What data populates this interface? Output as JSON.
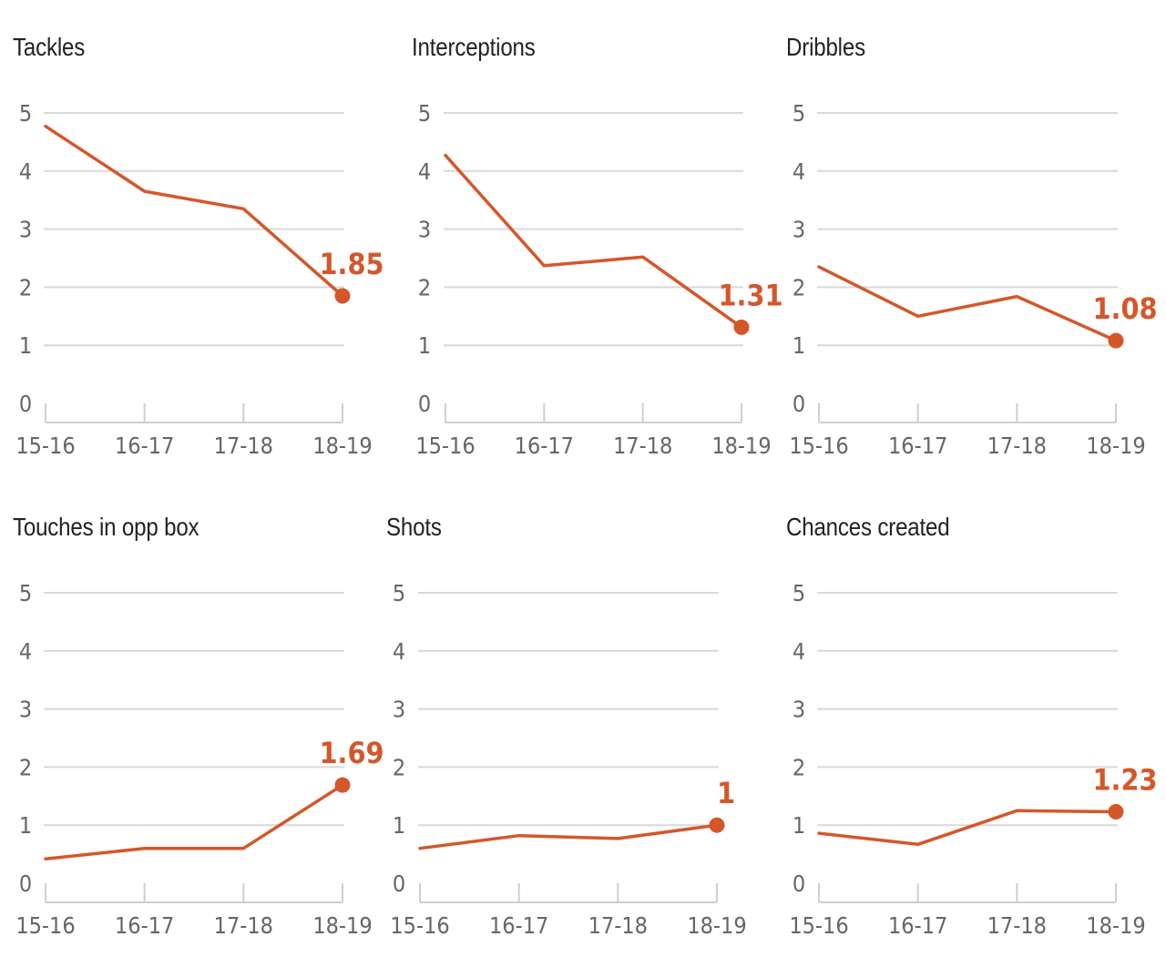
{
  "style": {
    "line_color": "#d4572a",
    "grid_color": "#d9d9d9",
    "axis_color": "#cfcfcf",
    "tick_label_color": "#666666",
    "title_color": "#222222"
  },
  "chart_data": [
    {
      "type": "line",
      "title": "Tackles",
      "categories": [
        "15-16",
        "16-17",
        "17-18",
        "18-19"
      ],
      "values": [
        4.77,
        3.65,
        3.35,
        1.85
      ],
      "ylim": [
        0,
        5
      ],
      "yticks": [
        "0",
        "1",
        "2",
        "3",
        "4",
        "5"
      ],
      "end_label": "1.85",
      "grid": true
    },
    {
      "type": "line",
      "title": "Interceptions",
      "categories": [
        "15-16",
        "16-17",
        "17-18",
        "18-19"
      ],
      "values": [
        4.27,
        2.37,
        2.52,
        1.31
      ],
      "ylim": [
        0,
        5
      ],
      "yticks": [
        "0",
        "1",
        "2",
        "3",
        "4",
        "5"
      ],
      "end_label": "1.31",
      "grid": true
    },
    {
      "type": "line",
      "title": "Dribbles",
      "categories": [
        "15-16",
        "16-17",
        "17-18",
        "18-19"
      ],
      "values": [
        2.35,
        1.5,
        1.84,
        1.08
      ],
      "ylim": [
        0,
        5
      ],
      "yticks": [
        "0",
        "1",
        "2",
        "3",
        "4",
        "5"
      ],
      "end_label": "1.08",
      "grid": true
    },
    {
      "type": "line",
      "title": "Touches in opp box",
      "categories": [
        "15-16",
        "16-17",
        "17-18",
        "18-19"
      ],
      "values": [
        0.42,
        0.6,
        0.6,
        1.69
      ],
      "ylim": [
        0,
        5
      ],
      "yticks": [
        "0",
        "1",
        "2",
        "3",
        "4",
        "5"
      ],
      "end_label": "1.69",
      "grid": true
    },
    {
      "type": "line",
      "title": "Shots",
      "categories": [
        "15-16",
        "16-17",
        "17-18",
        "18-19"
      ],
      "values": [
        0.6,
        0.82,
        0.77,
        1
      ],
      "ylim": [
        0,
        5
      ],
      "yticks": [
        "0",
        "1",
        "2",
        "3",
        "4",
        "5"
      ],
      "end_label": "1",
      "grid": true
    },
    {
      "type": "line",
      "title": "Chances created",
      "categories": [
        "15-16",
        "16-17",
        "17-18",
        "18-19"
      ],
      "values": [
        0.86,
        0.67,
        1.25,
        1.23
      ],
      "ylim": [
        0,
        5
      ],
      "yticks": [
        "0",
        "1",
        "2",
        "3",
        "4",
        "5"
      ],
      "end_label": "1.23",
      "grid": true
    }
  ]
}
